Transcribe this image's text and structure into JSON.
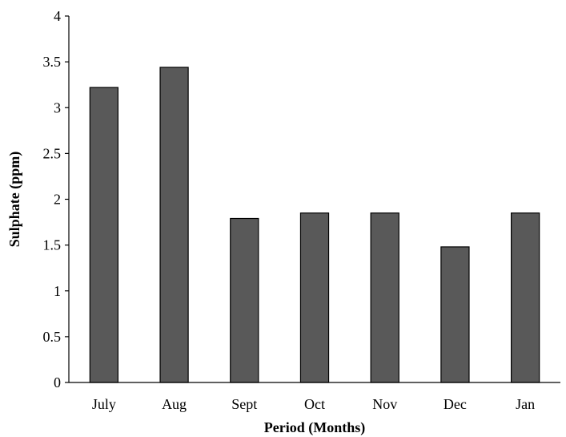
{
  "chart_data": {
    "type": "bar",
    "categories": [
      "July",
      "Aug",
      "Sept",
      "Oct",
      "Nov",
      "Dec",
      "Jan"
    ],
    "values": [
      3.22,
      3.44,
      1.79,
      1.85,
      1.85,
      1.48,
      1.85
    ],
    "xlabel": "Period (Months)",
    "ylabel": "Sulphate (ppm)",
    "ylim": [
      0,
      4
    ],
    "yticks": [
      "0",
      "0.5",
      "1",
      "1.5",
      "2",
      "2.5",
      "3",
      "3.5",
      "4"
    ],
    "grid": false,
    "bar_color": "#595959",
    "bar_stroke": "#000000"
  }
}
